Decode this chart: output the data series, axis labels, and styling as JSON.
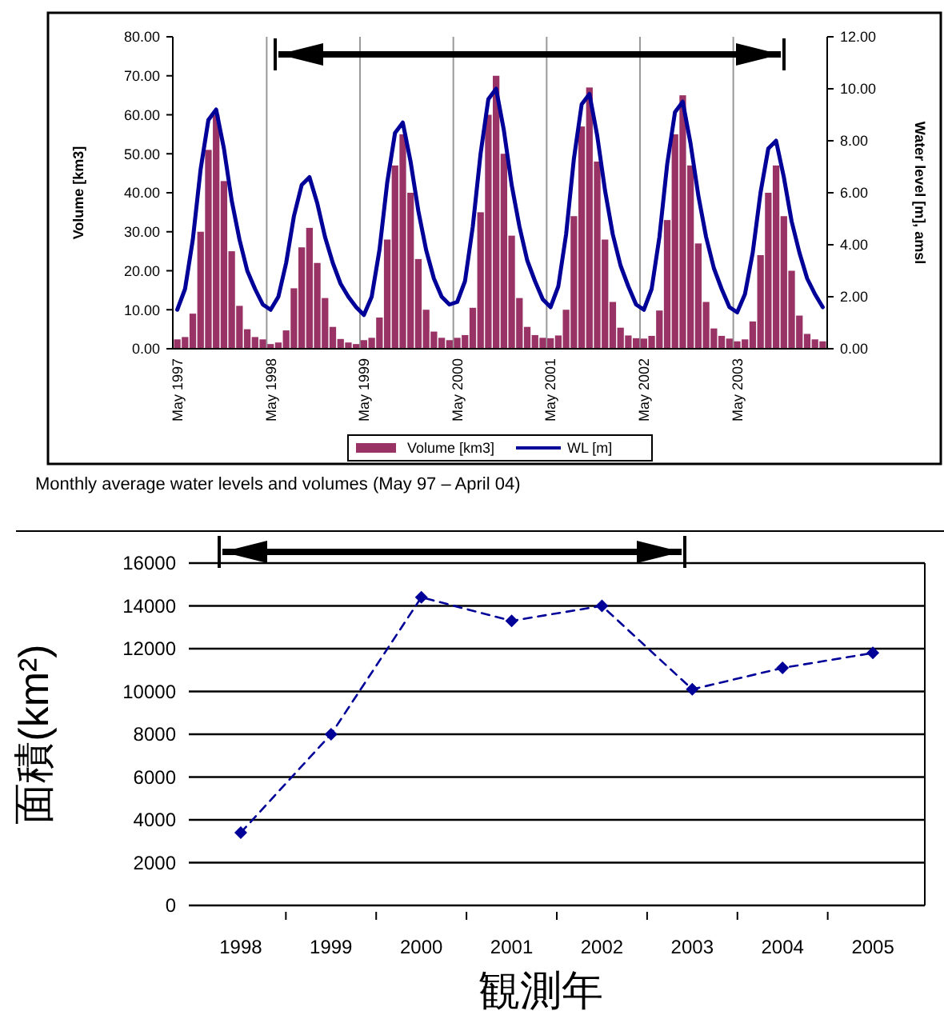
{
  "chart_data": [
    {
      "type": "bar",
      "ylabel": "Volume [km3]",
      "y2label": "Water level [m], amsl",
      "categories": [
        "May 1997",
        null,
        null,
        null,
        null,
        null,
        null,
        null,
        null,
        null,
        null,
        null,
        "May 1998",
        null,
        null,
        null,
        null,
        null,
        null,
        null,
        null,
        null,
        null,
        null,
        "May 1999",
        null,
        null,
        null,
        null,
        null,
        null,
        null,
        null,
        null,
        null,
        null,
        "May 2000",
        null,
        null,
        null,
        null,
        null,
        null,
        null,
        null,
        null,
        null,
        null,
        "May 2001",
        null,
        null,
        null,
        null,
        null,
        null,
        null,
        null,
        null,
        null,
        null,
        "May 2002",
        null,
        null,
        null,
        null,
        null,
        null,
        null,
        null,
        null,
        null,
        null,
        "May 2003",
        null,
        null,
        null,
        null,
        null,
        null,
        null,
        null,
        null,
        null,
        null
      ],
      "series": [
        {
          "name": "Volume [km3]",
          "color": "#993366",
          "values": [
            2.4,
            3,
            9,
            30,
            51,
            60,
            43,
            25,
            11,
            5,
            3,
            2.4,
            1.2,
            1.6,
            4.7,
            15.5,
            26,
            31,
            22,
            13,
            5.6,
            2.5,
            1.6,
            1.2,
            2.2,
            2.8,
            8,
            28,
            47,
            55,
            40,
            23,
            10,
            4.4,
            2.8,
            2.2,
            2.8,
            3.5,
            10.5,
            35,
            60,
            70,
            50,
            29,
            13,
            5.6,
            3.5,
            2.8,
            2.7,
            3.4,
            10,
            34,
            57,
            67,
            48,
            28,
            12,
            5.4,
            3.4,
            2.7,
            2.6,
            3.3,
            9.8,
            33,
            55,
            65,
            47,
            27,
            12,
            5.2,
            3.3,
            2.6,
            1.9,
            2.4,
            7,
            24,
            40,
            47,
            34,
            20,
            8.5,
            3.8,
            2.4,
            1.9
          ]
        },
        {
          "name": "WL [m]",
          "type": "line",
          "axis": "y2",
          "color": "#000099",
          "values": [
            1.5,
            2.3,
            4.2,
            6.9,
            8.8,
            9.2,
            7.7,
            5.7,
            4.2,
            3.0,
            2.3,
            1.7,
            1.5,
            2.0,
            3.3,
            5.1,
            6.3,
            6.6,
            5.6,
            4.3,
            3.3,
            2.5,
            2.0,
            1.6,
            1.3,
            2.0,
            3.8,
            6.4,
            8.3,
            8.7,
            7.2,
            5.3,
            3.8,
            2.7,
            2.0,
            1.7,
            1.8,
            2.6,
            4.7,
            7.5,
            9.6,
            10.0,
            8.4,
            6.3,
            4.7,
            3.4,
            2.6,
            1.9,
            1.6,
            2.4,
            4.4,
            7.3,
            9.4,
            9.8,
            8.2,
            6.1,
            4.4,
            3.2,
            2.4,
            1.7,
            1.5,
            2.3,
            4.3,
            7.1,
            9.1,
            9.5,
            7.9,
            5.9,
            4.3,
            3.1,
            2.3,
            1.6,
            1.4,
            2.1,
            3.7,
            6.0,
            7.7,
            8.0,
            6.6,
            4.9,
            3.7,
            2.7,
            2.1,
            1.6
          ]
        }
      ],
      "ylim": [
        0,
        80
      ],
      "yticks": [
        {
          "value": 0,
          "label": "0.00"
        },
        {
          "value": 10,
          "label": "10.00"
        },
        {
          "value": 20,
          "label": "20.00"
        },
        {
          "value": 30,
          "label": "30.00"
        },
        {
          "value": 40,
          "label": "40.00"
        },
        {
          "value": 50,
          "label": "50.00"
        },
        {
          "value": 60,
          "label": "60.00"
        },
        {
          "value": 70,
          "label": "70.00"
        },
        {
          "value": 80,
          "label": "80.00"
        }
      ],
      "y2lim": [
        0,
        12
      ],
      "y2ticks": [
        {
          "value": 0,
          "label": "0.00"
        },
        {
          "value": 2,
          "label": "2.00"
        },
        {
          "value": 4,
          "label": "4.00"
        },
        {
          "value": 6,
          "label": "6.00"
        },
        {
          "value": 8,
          "label": "8.00"
        },
        {
          "value": 10,
          "label": "10.00"
        },
        {
          "value": 12,
          "label": "12.00"
        }
      ],
      "grid": "x",
      "legend": "bottom",
      "marker": "none",
      "annotations": [
        "Monthly average water levels and volumes (May 97 – April 04)"
      ]
    },
    {
      "type": "line",
      "xlabel": "観測年",
      "ylabel": "面積(km²)",
      "categories": [
        "1998",
        "1999",
        "2000",
        "2001",
        "2002",
        "2003",
        "2004",
        "2005"
      ],
      "series": [
        {
          "color": "#000099",
          "values": [
            3400,
            8000,
            14400,
            13300,
            14000,
            10100,
            11100,
            11800
          ]
        }
      ],
      "ylim": [
        0,
        16000
      ],
      "yticks": [
        0,
        2000,
        4000,
        6000,
        8000,
        10000,
        12000,
        14000,
        16000
      ],
      "grid": "y",
      "marker": "diamond",
      "line_style": "dashed"
    }
  ]
}
